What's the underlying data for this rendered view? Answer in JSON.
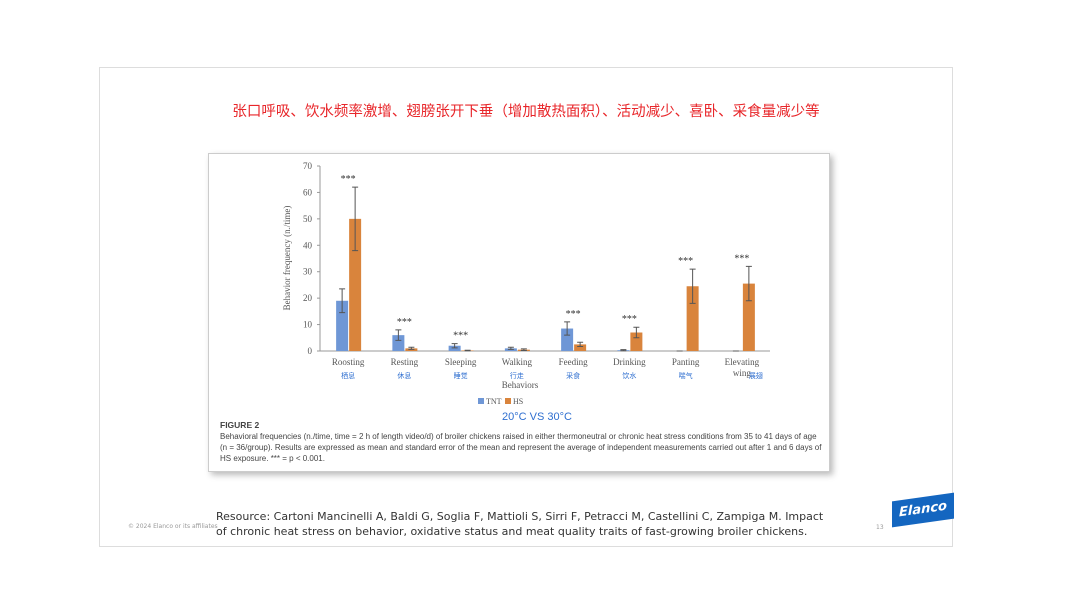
{
  "slide_title": "张口呼吸、饮水频率激增、翅膀张开下垂（增加散热面积）、活动减少、喜卧、采食量减少等",
  "chart_data": {
    "type": "bar",
    "categories": [
      "Roosting",
      "Resting",
      "Sleeping",
      "Walking",
      "Feeding",
      "Drinking",
      "Panting",
      "Elevating wing"
    ],
    "category_translations": [
      "栖息",
      "休息",
      "睡觉",
      "行走",
      "采食",
      "饮水",
      "喘气",
      "展翅"
    ],
    "series": [
      {
        "name": "TNT",
        "color": "#6f97d6",
        "values": [
          19,
          6,
          2,
          1,
          8.5,
          0.3,
          0,
          0
        ],
        "errors": [
          4.5,
          2,
          0.8,
          0.4,
          2.5,
          0.2,
          0,
          0
        ]
      },
      {
        "name": "HS",
        "color": "#d9843c",
        "values": [
          50,
          1,
          0.2,
          0.5,
          2.5,
          7,
          24.5,
          25.5
        ],
        "errors": [
          12,
          0.4,
          0.1,
          0.3,
          0.8,
          2,
          6.5,
          6.5
        ]
      }
    ],
    "significance": [
      "***",
      "***",
      "***",
      null,
      "***",
      "***",
      "***",
      "***"
    ],
    "ylim": [
      0,
      70
    ],
    "yticks": [
      0,
      10,
      20,
      30,
      40,
      50,
      60,
      70
    ],
    "y_label": "Behavior frequency (n./time)",
    "x_label": "Behaviors",
    "annotation": "20°C VS 30°C"
  },
  "caption": {
    "title": "FIGURE 2",
    "text": "Behavioral frequencies (n./time, time = 2 h of length video/d) of broiler chickens raised in either thermoneutral or chronic heat stress conditions from 35 to 41 days of age (n = 36/group). Results are expressed as mean and standard error of the mean and represent the average of independent measurements carried out after 1 and 6 days of HS exposure. *** = p < 0.001."
  },
  "resource": "Resource: Cartoni Mancinelli A, Baldi G, Soglia F, Mattioli S, Sirri F, Petracci M, Castellini C, Zampiga M. Impact of chronic heat stress on behavior, oxidative status and meat quality traits of fast-growing broiler chickens.",
  "footer": {
    "copyright": "© 2024 Elanco or its affiliates",
    "page": "13",
    "logo": "Elanco"
  }
}
